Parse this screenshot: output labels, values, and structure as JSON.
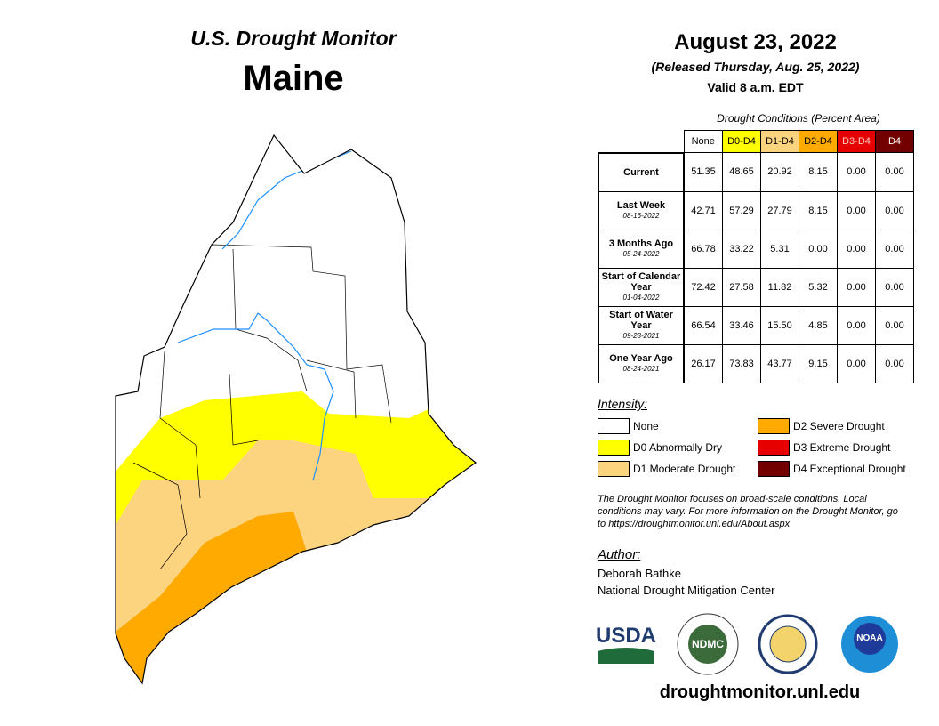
{
  "header": {
    "title": "U.S. Drought Monitor",
    "region": "Maine",
    "date": "August 23, 2022",
    "released": "(Released Thursday, Aug. 25, 2022)",
    "valid": "Valid 8 a.m. EDT"
  },
  "table": {
    "caption": "Drought Conditions (Percent Area)",
    "columns": [
      {
        "label": "None",
        "color": "#ffffff",
        "text": "#000000"
      },
      {
        "label": "D0-D4",
        "color": "#ffff00",
        "text": "#000000"
      },
      {
        "label": "D1-D4",
        "color": "#fcd37f",
        "text": "#000000"
      },
      {
        "label": "D2-D4",
        "color": "#ffaa00",
        "text": "#000000"
      },
      {
        "label": "D3-D4",
        "color": "#e60000",
        "text": "#ffcccc"
      },
      {
        "label": "D4",
        "color": "#730000",
        "text": "#ffffff"
      }
    ],
    "rows": [
      {
        "label": "Current",
        "values": [
          "51.35",
          "48.65",
          "20.92",
          "8.15",
          "0.00",
          "0.00"
        ]
      },
      {
        "label": "Last Week",
        "date": "08-16-2022",
        "values": [
          "42.71",
          "57.29",
          "27.79",
          "8.15",
          "0.00",
          "0.00"
        ]
      },
      {
        "label": "3 Months Ago",
        "date": "05-24-2022",
        "values": [
          "66.78",
          "33.22",
          "5.31",
          "0.00",
          "0.00",
          "0.00"
        ]
      },
      {
        "label": "Start of Calendar Year",
        "date": "01-04-2022",
        "values": [
          "72.42",
          "27.58",
          "11.82",
          "5.32",
          "0.00",
          "0.00"
        ]
      },
      {
        "label": "Start of Water Year",
        "date": "09-28-2021",
        "values": [
          "66.54",
          "33.46",
          "15.50",
          "4.85",
          "0.00",
          "0.00"
        ]
      },
      {
        "label": "One Year Ago",
        "date": "08-24-2021",
        "values": [
          "26.17",
          "73.83",
          "43.77",
          "9.15",
          "0.00",
          "0.00"
        ]
      }
    ]
  },
  "legend": {
    "title": "Intensity:",
    "items": [
      {
        "name": "None",
        "color": "#ffffff"
      },
      {
        "name": "D0 Abnormally Dry",
        "color": "#ffff00"
      },
      {
        "name": "D1 Moderate Drought",
        "color": "#fcd37f"
      },
      {
        "name": "D2 Severe Drought",
        "color": "#ffaa00"
      },
      {
        "name": "D3 Extreme Drought",
        "color": "#e60000"
      },
      {
        "name": "D4 Exceptional Drought",
        "color": "#730000"
      }
    ]
  },
  "note": "The Drought Monitor focuses on broad-scale conditions. Local conditions may vary. For more information on the Drought Monitor, go to https://droughtmonitor.unl.edu/About.aspx",
  "author": {
    "label": "Author:",
    "name": "Deborah Bathke",
    "org": "National Drought Mitigation Center"
  },
  "logos": [
    "USDA",
    "NDMC",
    "NOAA"
  ],
  "url": "droughtmonitor.unl.edu"
}
